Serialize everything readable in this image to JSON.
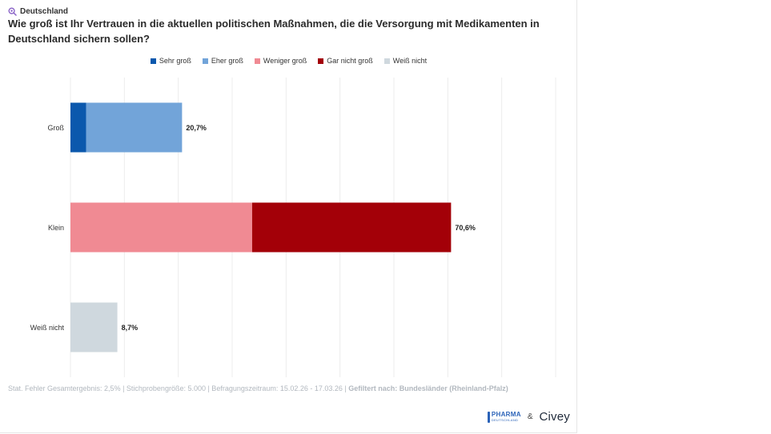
{
  "region": {
    "icon": "magnifier-icon",
    "label": "Deutschland"
  },
  "title": "Wie groß ist Ihr Vertrauen in die aktuellen politischen Maßnahmen, die die Versorgung mit Medikamenten in Deutschland sichern sollen?",
  "chart_data": {
    "type": "bar",
    "orientation": "horizontal",
    "stacked": true,
    "xlim": [
      0,
      90
    ],
    "grid": true,
    "legend_position": "top-center",
    "categories": [
      "Groß",
      "Klein",
      "Weiß nicht"
    ],
    "series": [
      {
        "name": "Sehr groß",
        "color": "#0b58ad",
        "values": [
          2.9,
          0,
          0
        ]
      },
      {
        "name": "Eher groß",
        "color": "#72a4d9",
        "values": [
          17.8,
          0,
          0
        ]
      },
      {
        "name": "Weniger groß",
        "color": "#f08a93",
        "values": [
          0,
          33.7,
          0
        ]
      },
      {
        "name": "Gar nicht groß",
        "color": "#a30008",
        "values": [
          0,
          36.9,
          0
        ]
      },
      {
        "name": "Weiß nicht",
        "color": "#cfd8de",
        "values": [
          0,
          0,
          8.7
        ]
      }
    ],
    "totals": [
      "20,7%",
      "70,6%",
      "8,7%"
    ]
  },
  "footer": {
    "stats": "Stat. Fehler Gesamtergebnis: 2,5% | Stichprobengröße: 5.000 | Befragungszeitraum: 15.02.26 - 17.03.26 | ",
    "filter_label": "Gefiltert nach: Bundesländer (Rheinland-Pfalz)"
  },
  "logos": {
    "pharma_main": "PHARMA",
    "pharma_sub": "DEUTSCHLAND",
    "amp": "&",
    "civey": "Civey"
  }
}
